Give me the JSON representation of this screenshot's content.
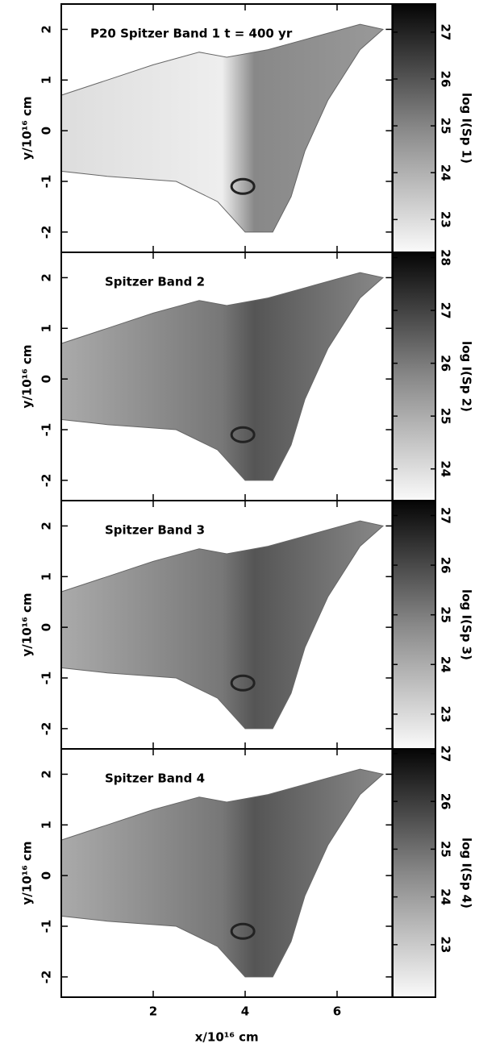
{
  "chart_data": [
    {
      "type": "image",
      "title": "P20 Spitzer Band 1   t = 400 yr",
      "ylabel": "y/10¹⁶ cm",
      "colorbar_label": "log I(Sp 1)",
      "xlim": [
        0,
        7.2
      ],
      "xticks": [
        2,
        4,
        6
      ],
      "ylim": [
        -2.4,
        2.5
      ],
      "yticks": [
        -2,
        -1,
        0,
        1,
        2
      ],
      "clim": [
        22.3,
        27.6
      ],
      "cticks": [
        23,
        24,
        25,
        26,
        27
      ]
    },
    {
      "type": "image",
      "title": "Spitzer Band 2",
      "ylabel": "y/10¹⁶ cm",
      "colorbar_label": "log I(Sp 2)",
      "xlim": [
        0,
        7.2
      ],
      "xticks": [
        2,
        4,
        6
      ],
      "ylim": [
        -2.4,
        2.5
      ],
      "yticks": [
        -2,
        -1,
        0,
        1,
        2
      ],
      "clim": [
        23.4,
        28.1
      ],
      "cticks": [
        24,
        25,
        26,
        27,
        28
      ]
    },
    {
      "type": "image",
      "title": "Spitzer Band 3",
      "ylabel": "y/10¹⁶ cm",
      "colorbar_label": "log I(Sp 3)",
      "xlim": [
        0,
        7.2
      ],
      "xticks": [
        2,
        4,
        6
      ],
      "ylim": [
        -2.4,
        2.5
      ],
      "yticks": [
        -2,
        -1,
        0,
        1,
        2
      ],
      "clim": [
        22.3,
        27.3
      ],
      "cticks": [
        23,
        24,
        25,
        26,
        27
      ]
    },
    {
      "type": "image",
      "title": "Spitzer Band 4",
      "ylabel": "y/10¹⁶ cm",
      "colorbar_label": "log I(Sp 4)",
      "xlabel": "x/10¹⁶ cm",
      "xlim": [
        0,
        7.2
      ],
      "xticks": [
        2,
        4,
        6
      ],
      "ylim": [
        -2.4,
        2.5
      ],
      "yticks": [
        -2,
        -1,
        0,
        1,
        2
      ],
      "clim": [
        21.9,
        27.1
      ],
      "cticks": [
        23,
        24,
        25,
        26,
        27
      ]
    }
  ]
}
